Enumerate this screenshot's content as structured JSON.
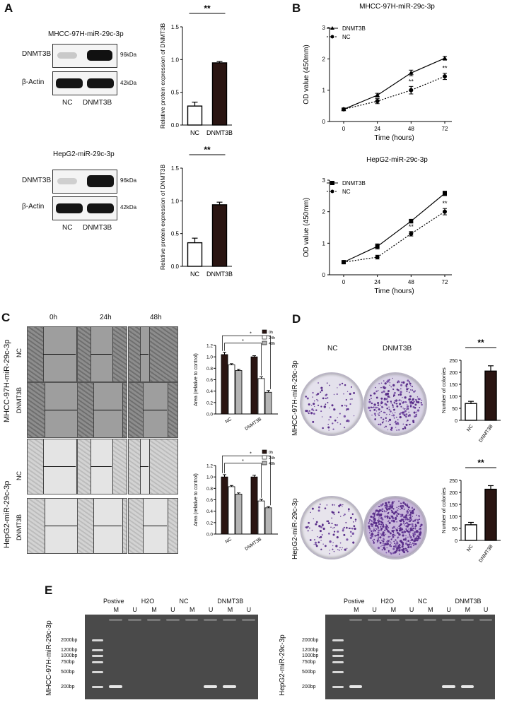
{
  "panels": {
    "A": "A",
    "B": "B",
    "C": "C",
    "D": "D",
    "E": "E"
  },
  "panelA": {
    "top": {
      "title": "MHCC-97H-miR-29c-3p",
      "rows": [
        "DNMT3B",
        "β-Actin"
      ],
      "sizes": [
        "96kDa",
        "42kDa"
      ],
      "lanes": [
        "NC",
        "DNMT3B"
      ]
    },
    "bottom": {
      "title": "HepG2-miR-29c-3p",
      "rows": [
        "DNMT3B",
        "β-Actin"
      ],
      "sizes": [
        "96kDa",
        "42kDa"
      ],
      "lanes": [
        "NC",
        "DNMT3B"
      ]
    }
  },
  "panelC": {
    "timepoints": [
      "0h",
      "24h",
      "48h"
    ],
    "cellline_top": "MHCC-97H-miR-29c-3p",
    "cellline_bottom": "HepG2-miR-29c-3p",
    "row_nc": "NC",
    "row_dnmt3b": "DNMT3B"
  },
  "panelD": {
    "col_nc": "NC",
    "col_dnmt3b": "DNMT3B",
    "cellline_top": "MHCC-97H-miR-29c-3p",
    "cellline_bottom": "HepG2-miR-29c-3p"
  },
  "panelE": {
    "left": {
      "cellline": "MHCC-97H-miR-29c-3p",
      "groups": [
        "Postive",
        "H2O",
        "NC",
        "DNMT3B"
      ],
      "lanes": [
        "M",
        "U",
        "M",
        "U",
        "M",
        "U",
        "M",
        "U"
      ],
      "ladder": [
        "2000bp",
        "1200bp",
        "1000bp",
        "750bp",
        "500bp",
        "200bp"
      ]
    },
    "right": {
      "cellline": "HepG2-miR-29c-3p",
      "groups": [
        "Postive",
        "H2O",
        "NC",
        "DNMT3B"
      ],
      "lanes": [
        "M",
        "U",
        "M",
        "U",
        "M",
        "U",
        "M",
        "U"
      ],
      "ladder": [
        "2000bp",
        "1200bp",
        "1000bp",
        "750bp",
        "500bp",
        "200bp"
      ]
    }
  },
  "chart_data": [
    {
      "id": "A-top",
      "type": "bar",
      "categories": [
        "NC",
        "DNMT3B"
      ],
      "values": [
        0.29,
        0.95
      ],
      "errors": [
        0.06,
        0.02
      ],
      "ylabel": "Relative protein expression of DNMT3B",
      "ylim": [
        0,
        1.5
      ],
      "yticks": [
        "0.0",
        "0.5",
        "1.0",
        "1.5"
      ],
      "significance": "**",
      "colors": [
        "#ffffff",
        "#2a1512"
      ]
    },
    {
      "id": "A-bottom",
      "type": "bar",
      "categories": [
        "NC",
        "DNMT3B"
      ],
      "values": [
        0.36,
        0.94
      ],
      "errors": [
        0.07,
        0.04
      ],
      "ylabel": "Relative protein expression of DNMT3B",
      "ylim": [
        0,
        1.5
      ],
      "yticks": [
        "0.0",
        "0.5",
        "1.0",
        "1.5"
      ],
      "significance": "**",
      "colors": [
        "#ffffff",
        "#2a1512"
      ]
    },
    {
      "id": "B-top",
      "type": "line",
      "title": "MHCC-97H-miR-29c-3p",
      "x": [
        0,
        24,
        48,
        72
      ],
      "xlabel": "Time (hours)",
      "ylabel": "OD value (450mm)",
      "ylim": [
        0,
        3
      ],
      "yticks": [
        "0",
        "1",
        "2",
        "3"
      ],
      "series": [
        {
          "name": "DNMT3B",
          "values": [
            0.39,
            0.84,
            1.55,
            2.02
          ],
          "errors": [
            0.04,
            0.06,
            0.09,
            0.06
          ]
        },
        {
          "name": "NC",
          "values": [
            0.39,
            0.65,
            1.0,
            1.44
          ],
          "errors": [
            0.04,
            0.08,
            0.12,
            0.1
          ]
        }
      ],
      "annotations": [
        {
          "x": 48,
          "text": "**"
        },
        {
          "x": 72,
          "text": "**"
        }
      ]
    },
    {
      "id": "B-bottom",
      "type": "line",
      "title": "HepG2-miR-29c-3p",
      "x": [
        0,
        24,
        48,
        72
      ],
      "xlabel": "Time (hours)",
      "ylabel": "OD value (450mm)",
      "ylim": [
        0,
        3
      ],
      "yticks": [
        "0",
        "1",
        "2",
        "3"
      ],
      "series": [
        {
          "name": "DNMT3B",
          "values": [
            0.4,
            0.9,
            1.7,
            2.58
          ],
          "errors": [
            0.03,
            0.08,
            0.06,
            0.07
          ]
        },
        {
          "name": "NC",
          "values": [
            0.4,
            0.56,
            1.3,
            2.0
          ],
          "errors": [
            0.03,
            0.06,
            0.07,
            0.1
          ]
        }
      ],
      "annotations": [
        {
          "x": 48,
          "text": "**"
        },
        {
          "x": 72,
          "text": "**"
        }
      ]
    },
    {
      "id": "C-top",
      "type": "bar",
      "categories": [
        "NC",
        "DNMT3B"
      ],
      "series": [
        {
          "name": "0h",
          "values": [
            1.04,
            1.0
          ],
          "errors": [
            0.04,
            0.02
          ]
        },
        {
          "name": "24h",
          "values": [
            0.86,
            0.62
          ],
          "errors": [
            0.02,
            0.03
          ]
        },
        {
          "name": "48h",
          "values": [
            0.76,
            0.38
          ],
          "errors": [
            0.02,
            0.03
          ]
        }
      ],
      "ylabel": "Area (relative to control)",
      "ylim": [
        0,
        1.2
      ],
      "yticks": [
        "0.0",
        "0.2",
        "0.4",
        "0.6",
        "0.8",
        "1.0",
        "1.2"
      ],
      "significance": "*",
      "colors": [
        "#2a1512",
        "#ffffff",
        "#b5b5b5"
      ]
    },
    {
      "id": "C-bottom",
      "type": "bar",
      "categories": [
        "NC",
        "DNMT3B"
      ],
      "series": [
        {
          "name": "0h",
          "values": [
            1.0,
            1.0
          ],
          "errors": [
            0.04,
            0.03
          ]
        },
        {
          "name": "24h",
          "values": [
            0.83,
            0.58
          ],
          "errors": [
            0.02,
            0.03
          ]
        },
        {
          "name": "48h",
          "values": [
            0.7,
            0.46
          ],
          "errors": [
            0.02,
            0.02
          ]
        }
      ],
      "ylabel": "Area (relative to control)",
      "ylim": [
        0,
        1.2
      ],
      "yticks": [
        "0.0",
        "0.2",
        "0.4",
        "0.6",
        "0.8",
        "1.0",
        "1.2"
      ],
      "significance": "*",
      "colors": [
        "#2a1512",
        "#ffffff",
        "#b5b5b5"
      ]
    },
    {
      "id": "D-top",
      "type": "bar",
      "categories": [
        "NC",
        "DNMT3B"
      ],
      "values": [
        70,
        205
      ],
      "errors": [
        9,
        22
      ],
      "ylabel": "Number of colonies",
      "ylim": [
        0,
        250
      ],
      "yticks": [
        "0",
        "50",
        "100",
        "150",
        "200",
        "250"
      ],
      "significance": "**",
      "colors": [
        "#ffffff",
        "#2a1512"
      ]
    },
    {
      "id": "D-bottom",
      "type": "bar",
      "categories": [
        "NC",
        "DNMT3B"
      ],
      "values": [
        65,
        213
      ],
      "errors": [
        10,
        15
      ],
      "ylabel": "Number of colonies",
      "ylim": [
        0,
        250
      ],
      "yticks": [
        "0",
        "50",
        "100",
        "150",
        "200",
        "250"
      ],
      "significance": "**",
      "colors": [
        "#ffffff",
        "#2a1512"
      ]
    }
  ]
}
